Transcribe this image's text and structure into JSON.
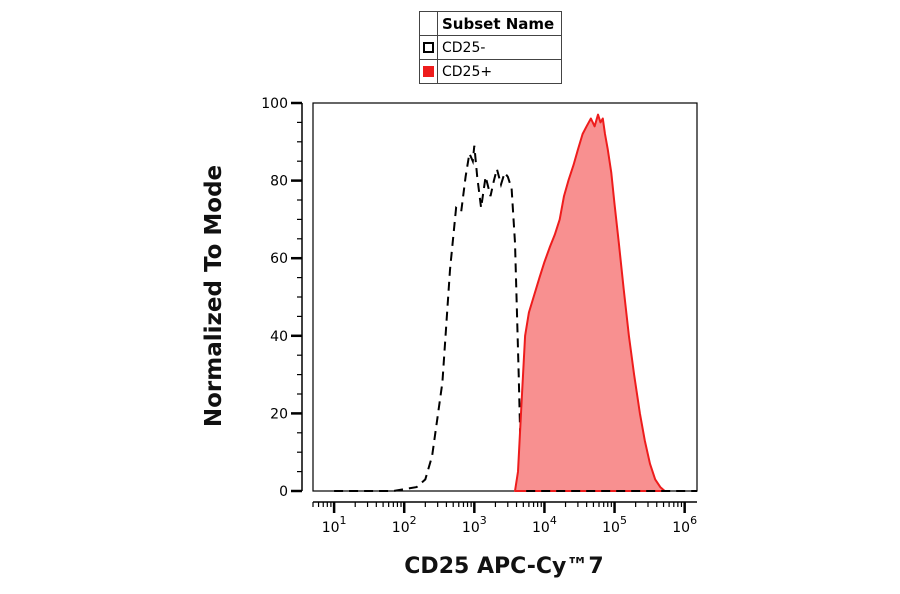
{
  "legend": {
    "header": "Subset Name",
    "entries": [
      {
        "label": "CD25-",
        "fill": "#ffffff",
        "border": "#000000"
      },
      {
        "label": "CD25+",
        "fill": "#ee1c1c",
        "border": "#ee1c1c"
      }
    ]
  },
  "chart_data": {
    "type": "area",
    "xlabel": "CD25 APC-Cy™7",
    "ylabel": "Normalized To Mode",
    "xscale": "log",
    "xlim": [
      5,
      1500000
    ],
    "ylim": [
      0,
      100
    ],
    "x_ticks": [
      {
        "base": "10",
        "exp": "1",
        "value": 10
      },
      {
        "base": "10",
        "exp": "2",
        "value": 100
      },
      {
        "base": "10",
        "exp": "3",
        "value": 1000
      },
      {
        "base": "10",
        "exp": "4",
        "value": 10000
      },
      {
        "base": "10",
        "exp": "5",
        "value": 100000
      },
      {
        "base": "10",
        "exp": "6",
        "value": 1000000
      }
    ],
    "y_ticks": [
      "0",
      "20",
      "40",
      "60",
      "80",
      "100"
    ],
    "y_tick_values": [
      0,
      20,
      40,
      60,
      80,
      100
    ],
    "series": [
      {
        "name": "CD25-",
        "style": "dashed",
        "color": "#000000",
        "x": [
          10,
          70,
          150,
          200,
          250,
          350,
          450,
          550,
          650,
          750,
          850,
          950,
          1000,
          1100,
          1250,
          1450,
          1700,
          1900,
          2100,
          2400,
          2700,
          3000,
          3400,
          3800,
          4300,
          4600,
          4900,
          5200,
          5500
        ],
        "y": [
          0,
          0,
          1,
          3,
          9,
          28,
          57,
          73,
          72,
          81,
          87,
          85,
          89,
          81,
          73,
          81,
          76,
          80,
          83,
          79,
          82,
          81,
          78,
          64,
          30,
          8,
          2,
          0,
          0
        ]
      },
      {
        "name": "CD25+",
        "style": "filled",
        "color": "#ee1c1c",
        "fill": "#f89090",
        "x": [
          3800,
          4200,
          4700,
          5300,
          6000,
          7000,
          8500,
          10000,
          12000,
          14000,
          16500,
          19000,
          22000,
          26000,
          30000,
          35000,
          40000,
          46000,
          52000,
          58000,
          63000,
          68000,
          73000,
          80000,
          90000,
          100000,
          115000,
          135000,
          160000,
          190000,
          230000,
          270000,
          320000,
          380000,
          450000,
          520000
        ],
        "y": [
          0,
          5,
          22,
          40,
          46,
          50,
          55,
          59,
          63,
          66,
          70,
          76,
          80,
          84,
          88,
          92,
          94,
          96,
          94,
          97,
          95,
          96,
          92,
          88,
          82,
          74,
          64,
          52,
          40,
          30,
          20,
          13,
          7,
          3,
          1,
          0
        ]
      },
      {
        "name": "baseline",
        "style": "dashed",
        "color": "#000000",
        "x": [
          5500,
          1500000
        ],
        "y": [
          0,
          0
        ]
      }
    ]
  }
}
